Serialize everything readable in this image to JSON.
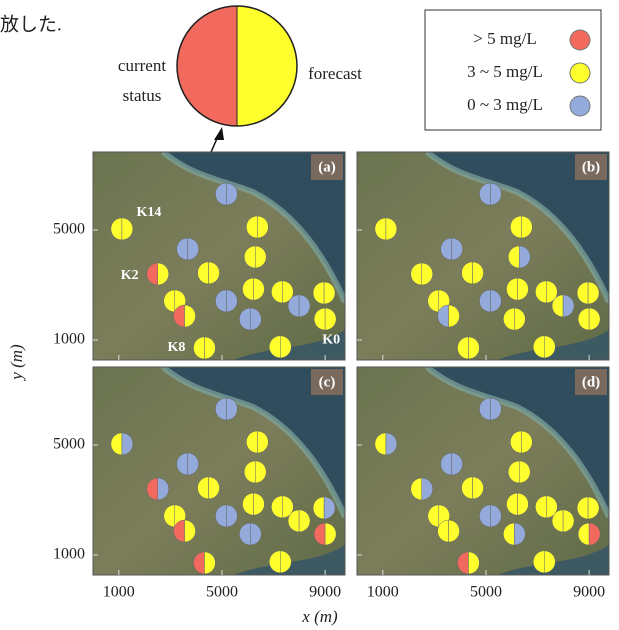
{
  "caption_fragment": "放した.",
  "callout": {
    "current": "current",
    "status": "status",
    "forecast": "forecast",
    "current_color": "#f26a5e",
    "forecast_color": "#ffff2e"
  },
  "legend": [
    {
      "label": "> 5  mg/L",
      "color": "#f26a5e"
    },
    {
      "label": "3 ~ 5 mg/L",
      "color": "#ffff2e"
    },
    {
      "label": "0 ~ 3 mg/L",
      "color": "#93aadb"
    }
  ],
  "chart_data": {
    "type": "scatter",
    "xlabel": "x (m)",
    "ylabel": "y (m)",
    "xlim": [
      0,
      9770
    ],
    "ylim": [
      270,
      7840
    ],
    "xticks": [
      1000,
      5000,
      9000
    ],
    "yticks": [
      1000,
      5000
    ],
    "x": [
      1120,
      5170,
      3670,
      6370,
      6290,
      2510,
      4480,
      3170,
      5170,
      6220,
      7340,
      8960,
      3550,
      6100,
      7990,
      9000,
      4320,
      7260
    ],
    "y": [
      5040,
      6310,
      4310,
      5110,
      4020,
      3400,
      3440,
      2420,
      2420,
      2850,
      2750,
      2710,
      1870,
      1760,
      2240,
      1760,
      710,
      750
    ],
    "station_labels": [
      "K14",
      null,
      null,
      null,
      null,
      "K2",
      null,
      null,
      null,
      null,
      null,
      null,
      null,
      null,
      null,
      "K0",
      "K8",
      null
    ],
    "panels": [
      {
        "label": "(a)",
        "current": [
          "#ffff2e",
          "#93aadb",
          "#93aadb",
          "#ffff2e",
          "#ffff2e",
          "#f26a5e",
          "#ffff2e",
          "#ffff2e",
          "#93aadb",
          "#ffff2e",
          "#ffff2e",
          "#ffff2e",
          "#f26a5e",
          "#93aadb",
          "#93aadb",
          "#ffff2e",
          "#ffff2e",
          "#ffff2e"
        ],
        "forecast": [
          "#ffff2e",
          "#93aadb",
          "#93aadb",
          "#ffff2e",
          "#ffff2e",
          "#ffff2e",
          "#ffff2e",
          "#ffff2e",
          "#93aadb",
          "#ffff2e",
          "#ffff2e",
          "#ffff2e",
          "#ffff2e",
          "#93aadb",
          "#93aadb",
          "#ffff2e",
          "#ffff2e",
          "#ffff2e"
        ]
      },
      {
        "label": "(b)",
        "current": [
          "#ffff2e",
          "#93aadb",
          "#93aadb",
          "#ffff2e",
          "#ffff2e",
          "#ffff2e",
          "#ffff2e",
          "#ffff2e",
          "#93aadb",
          "#ffff2e",
          "#ffff2e",
          "#ffff2e",
          "#93aadb",
          "#ffff2e",
          "#ffff2e",
          "#ffff2e",
          "#ffff2e",
          "#ffff2e"
        ],
        "forecast": [
          "#ffff2e",
          "#93aadb",
          "#93aadb",
          "#ffff2e",
          "#93aadb",
          "#ffff2e",
          "#ffff2e",
          "#ffff2e",
          "#93aadb",
          "#ffff2e",
          "#ffff2e",
          "#ffff2e",
          "#ffff2e",
          "#ffff2e",
          "#93aadb",
          "#ffff2e",
          "#ffff2e",
          "#ffff2e"
        ]
      },
      {
        "label": "(c)",
        "current": [
          "#ffff2e",
          "#93aadb",
          "#93aadb",
          "#ffff2e",
          "#ffff2e",
          "#f26a5e",
          "#ffff2e",
          "#ffff2e",
          "#93aadb",
          "#ffff2e",
          "#ffff2e",
          "#ffff2e",
          "#f26a5e",
          "#93aadb",
          "#ffff2e",
          "#f26a5e",
          "#f26a5e",
          "#ffff2e"
        ],
        "forecast": [
          "#93aadb",
          "#93aadb",
          "#93aadb",
          "#ffff2e",
          "#ffff2e",
          "#93aadb",
          "#ffff2e",
          "#ffff2e",
          "#93aadb",
          "#ffff2e",
          "#ffff2e",
          "#93aadb",
          "#ffff2e",
          "#93aadb",
          "#ffff2e",
          "#ffff2e",
          "#ffff2e",
          "#ffff2e"
        ]
      },
      {
        "label": "(d)",
        "current": [
          "#ffff2e",
          "#93aadb",
          "#93aadb",
          "#ffff2e",
          "#ffff2e",
          "#ffff2e",
          "#ffff2e",
          "#ffff2e",
          "#93aadb",
          "#ffff2e",
          "#ffff2e",
          "#ffff2e",
          "#ffff2e",
          "#ffff2e",
          "#ffff2e",
          "#ffff2e",
          "#f26a5e",
          "#ffff2e"
        ],
        "forecast": [
          "#93aadb",
          "#93aadb",
          "#93aadb",
          "#ffff2e",
          "#ffff2e",
          "#93aadb",
          "#ffff2e",
          "#ffff2e",
          "#93aadb",
          "#ffff2e",
          "#ffff2e",
          "#ffff2e",
          "#ffff2e",
          "#93aadb",
          "#ffff2e",
          "#f26a5e",
          "#ffff2e",
          "#ffff2e"
        ]
      }
    ]
  }
}
